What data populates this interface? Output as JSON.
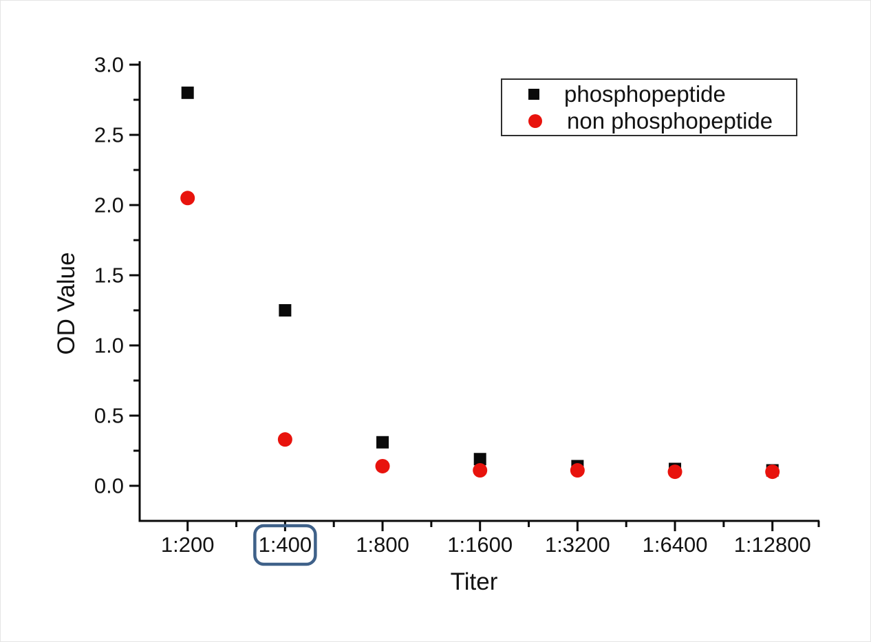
{
  "chart_data": {
    "type": "scatter",
    "title": "",
    "xlabel": "Titer",
    "ylabel": "OD Value",
    "categories": [
      "1:200",
      "1:400",
      "1:800",
      "1:1600",
      "1:3200",
      "1:6400",
      "1:12800"
    ],
    "series": [
      {
        "name": "phosphopeptide",
        "marker": "square",
        "color": "#0a0a0a",
        "values": [
          2.8,
          1.25,
          0.31,
          0.19,
          0.14,
          0.12,
          0.11
        ]
      },
      {
        "name": "non phosphopeptide",
        "marker": "circle",
        "color": "#e8130d",
        "values": [
          2.05,
          0.33,
          0.14,
          0.11,
          0.11,
          0.1,
          0.1
        ]
      }
    ],
    "ylim": [
      0.0,
      3.0
    ],
    "y_tick_labels": [
      "0.0",
      "0.5",
      "1.0",
      "1.5",
      "2.0",
      "2.5",
      "3.0"
    ],
    "y_tick_step": 0.5,
    "grid": false,
    "legend_position": "top-right",
    "axis_color": "#0a0a0a",
    "annotation": {
      "highlighted_tick": "1:400",
      "box_color": "#3f6189"
    }
  }
}
